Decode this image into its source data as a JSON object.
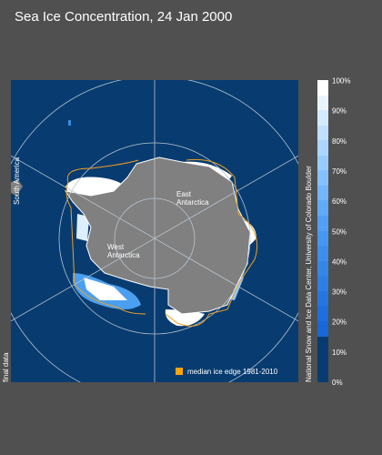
{
  "header": {
    "title": "Sea Ice Concentration, 24 Jan 2000"
  },
  "map": {
    "labels": {
      "south_america": "South America",
      "east_antarctica": "East\nAntarctica",
      "west_antarctica": "West\nAntarctica"
    },
    "status": "final data",
    "legend": "median ice edge 1981-2010",
    "credit": "National Snow and Ice Data Center, University of Colorado Boulder"
  },
  "colorbar": {
    "ticks": [
      "100%",
      "90%",
      "80%",
      "70%",
      "60%",
      "50%",
      "40%",
      "30%",
      "20%",
      "10%",
      "0%"
    ]
  }
}
